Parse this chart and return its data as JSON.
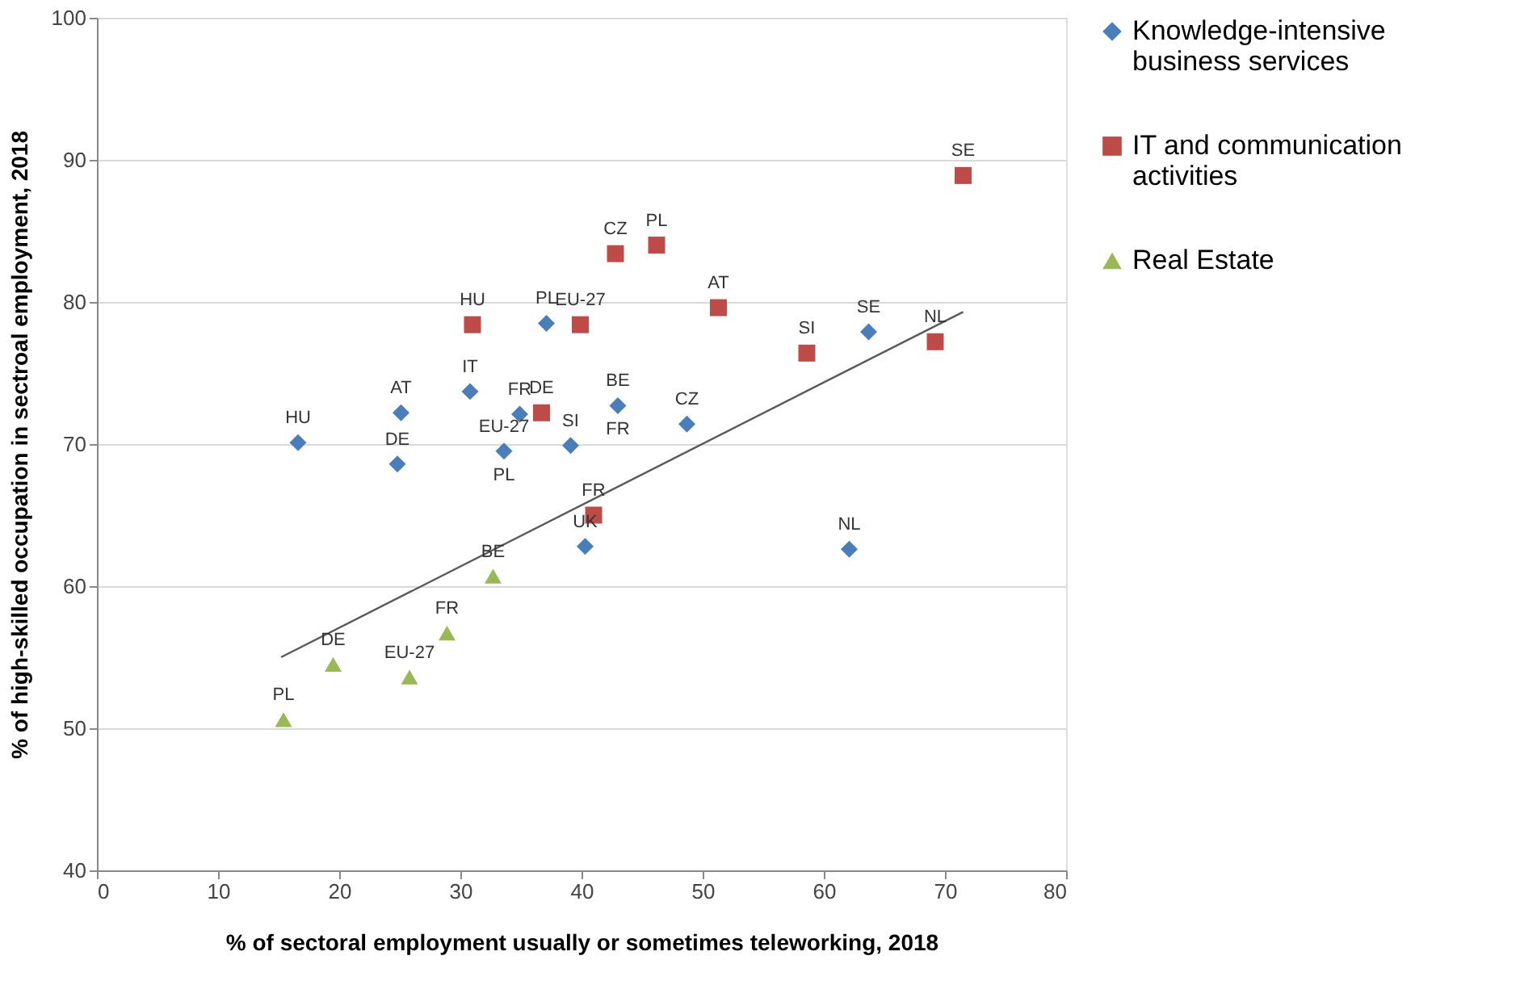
{
  "chart_data": {
    "type": "scatter",
    "xlabel": "% of sectoral employment usually or sometimes teleworking, 2018",
    "ylabel": "% of high-skilled occupation in sectroal employment, 2018",
    "xlim": [
      0,
      80
    ],
    "xticks": [
      0,
      10,
      20,
      30,
      40,
      50,
      60,
      70,
      80
    ],
    "ylim": [
      40,
      100
    ],
    "yticks": [
      40,
      50,
      60,
      70,
      80,
      90,
      100
    ],
    "grid": "y",
    "legend": "right",
    "series": [
      {
        "name": "Knowledge-intensive business services",
        "color": "#4a7ebb",
        "marker": "diamond",
        "x": [
          16.6,
          25.1,
          24.8,
          30.8,
          34.9,
          37.1,
          33.6,
          39.1,
          43.0,
          48.7,
          40.3,
          62.1,
          63.7
        ],
        "values": [
          70.1,
          72.2,
          68.6,
          73.7,
          72.1,
          78.5,
          69.5,
          69.9,
          72.7,
          71.4,
          62.8,
          62.6,
          77.9
        ]
      },
      {
        "name": "IT and communication activities",
        "color": "#be4b48",
        "marker": "square",
        "x": [
          31.0,
          39.9,
          36.7,
          41.0,
          42.8,
          46.2,
          51.3,
          58.6,
          69.2,
          71.5
        ],
        "values": [
          78.4,
          78.4,
          72.2,
          65.0,
          83.4,
          84.0,
          79.6,
          76.4,
          77.2,
          88.9
        ]
      },
      {
        "name": "Real Estate",
        "color": "#98b954",
        "marker": "triangle",
        "x": [
          15.4,
          19.5,
          25.8,
          28.9,
          32.7
        ],
        "values": [
          50.6,
          54.5,
          53.6,
          56.7,
          60.7
        ]
      },
      {
        "type": "line",
        "color": "#595959",
        "line_style": "solid",
        "marker": "none",
        "x": [
          15.2,
          71.5
        ],
        "values": [
          55.0,
          79.3
        ]
      }
    ],
    "annotations": [
      {
        "text": "HU",
        "x": 16.6,
        "y": 70.1
      },
      {
        "text": "AT",
        "x": 25.1,
        "y": 72.2
      },
      {
        "text": "DE",
        "x": 24.8,
        "y": 68.6
      },
      {
        "text": "IT",
        "x": 30.8,
        "y": 73.7
      },
      {
        "text": "FR",
        "x": 34.9,
        "y": 72.1
      },
      {
        "text": "PL",
        "x": 37.1,
        "y": 78.5
      },
      {
        "text": "EU-27",
        "x": 33.6,
        "y": 69.5
      },
      {
        "text": "PL",
        "x": 33.6,
        "y": 69.5
      },
      {
        "text": "SI",
        "x": 39.1,
        "y": 69.9
      },
      {
        "text": "BE",
        "x": 43.0,
        "y": 72.7
      },
      {
        "text": "FR",
        "x": 43.0,
        "y": 72.7
      },
      {
        "text": "CZ",
        "x": 48.7,
        "y": 71.4
      },
      {
        "text": "UK",
        "x": 40.3,
        "y": 62.8
      },
      {
        "text": "NL",
        "x": 62.1,
        "y": 62.6
      },
      {
        "text": "SE",
        "x": 63.7,
        "y": 77.9
      },
      {
        "text": "HU",
        "x": 31.0,
        "y": 78.4
      },
      {
        "text": "EU-27",
        "x": 39.9,
        "y": 78.4
      },
      {
        "text": "DE",
        "x": 36.7,
        "y": 72.2
      },
      {
        "text": "FR",
        "x": 41.0,
        "y": 65.0
      },
      {
        "text": "CZ",
        "x": 42.8,
        "y": 83.4
      },
      {
        "text": "PL",
        "x": 46.2,
        "y": 84.0
      },
      {
        "text": "AT",
        "x": 51.3,
        "y": 79.6
      },
      {
        "text": "SI",
        "x": 58.6,
        "y": 76.4
      },
      {
        "text": "NL",
        "x": 69.2,
        "y": 77.2
      },
      {
        "text": "SE",
        "x": 71.5,
        "y": 88.9
      },
      {
        "text": "PL",
        "x": 15.4,
        "y": 50.6
      },
      {
        "text": "DE",
        "x": 19.5,
        "y": 54.5
      },
      {
        "text": "EU-27",
        "x": 25.8,
        "y": 53.6
      },
      {
        "text": "FR",
        "x": 28.9,
        "y": 56.7
      },
      {
        "text": "BE",
        "x": 32.7,
        "y": 60.7
      }
    ]
  }
}
